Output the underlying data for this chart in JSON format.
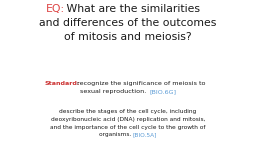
{
  "background_color": "#ffffff",
  "eq_label": "EQ:",
  "eq_label_color": "#d44",
  "title_line1_prefix": "EQ:",
  "title_line1_rest": " What are the similarities",
  "title_line2": "and differences of the outcomes",
  "title_line3": "of mitosis and meiosis?",
  "title_color": "#1a1a1a",
  "title_fontsize": 7.8,
  "standard_label": "Standard:",
  "standard_label_color": "#cc3333",
  "standard_rest": " recognize the significance of meiosis to",
  "standard_line2": "sexual reproduction. ",
  "standard_code": "[BIO.6G]",
  "standard_code_color": "#5b9bd5",
  "standard_fontsize": 4.6,
  "desc_line1": "describe the stages of the cell cycle, including",
  "desc_line2": "deoxyribonucleic acid (DNA) replication and mitosis,",
  "desc_line3": "and the importance of the cell cycle to the growth of",
  "desc_line4": "organisms. ",
  "desc_code": "[BIO.5A]",
  "desc_code_color": "#5b9bd5",
  "desc_fontsize": 4.2,
  "desc_color": "#1a1a1a"
}
